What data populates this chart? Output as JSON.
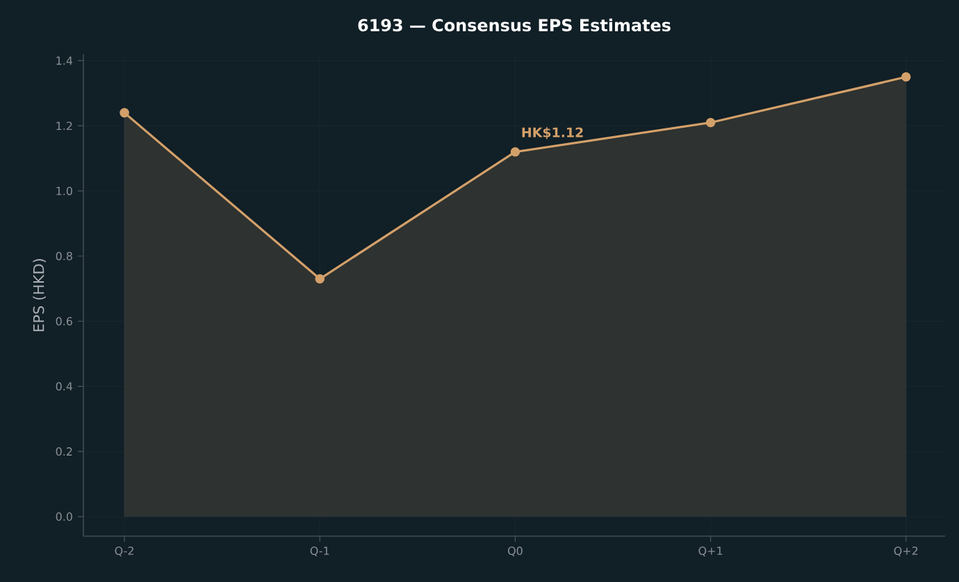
{
  "chart_data": {
    "type": "area",
    "title": "6193 — Consensus EPS Estimates",
    "ylabel": "EPS (HKD)",
    "categories": [
      "Q-2",
      "Q-1",
      "Q0",
      "Q+1",
      "Q+2"
    ],
    "series": [
      {
        "color": "#d4a06a",
        "values": [
          1.24,
          0.73,
          1.12,
          1.21,
          1.35
        ]
      }
    ],
    "ylim": [
      -0.06,
      1.42
    ],
    "yticks": [
      {
        "value": 0,
        "label": "0.0"
      },
      {
        "value": 0.2,
        "label": "0.2"
      },
      {
        "value": 0.4,
        "label": "0.4"
      },
      {
        "value": 0.6,
        "label": "0.6"
      },
      {
        "value": 0.8,
        "label": "0.8"
      },
      {
        "value": 1.0,
        "label": "1.0"
      },
      {
        "value": 1.2,
        "label": "1.2"
      },
      {
        "value": 1.4,
        "label": "1.4"
      }
    ],
    "annotations": [
      {
        "text": "HK$1.12",
        "x": "Q0",
        "y": 1.12
      }
    ],
    "grid": true,
    "marker": "circle",
    "line_style": "solid"
  }
}
